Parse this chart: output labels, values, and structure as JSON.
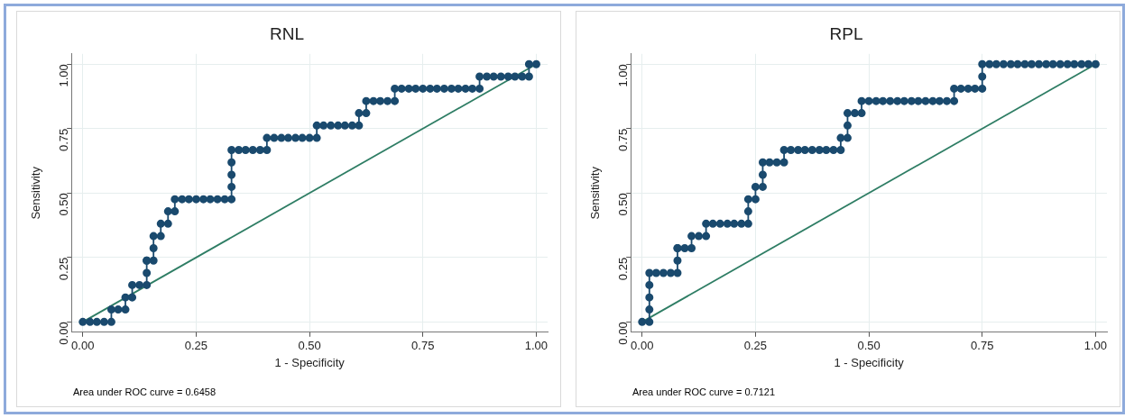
{
  "chart_data": [
    {
      "type": "line",
      "title": "RNL",
      "xlabel": "1 - Specificity",
      "ylabel": "Sensitivity",
      "annotations": [
        "Area under ROC curve = 0.6458"
      ],
      "xlim": [
        -0.025,
        1.025
      ],
      "ylim": [
        -0.04,
        1.04
      ],
      "xticks": [
        {
          "value": 0,
          "label": "0.00"
        },
        {
          "value": 0.25,
          "label": "0.25"
        },
        {
          "value": 0.5,
          "label": "0.50"
        },
        {
          "value": 0.75,
          "label": "0.75"
        },
        {
          "value": 1,
          "label": "1.00"
        }
      ],
      "yticks": [
        {
          "value": 0,
          "label": "0.00"
        },
        {
          "value": 0.25,
          "label": "0.25"
        },
        {
          "value": 0.5,
          "label": "0.50"
        },
        {
          "value": 0.75,
          "label": "0.75"
        },
        {
          "value": 1,
          "label": "1.00"
        }
      ],
      "grid": true,
      "legend": false,
      "series": [
        {
          "type": "scatter",
          "color": "#1a4a6e",
          "marker": "circle",
          "x": [
            0,
            0.016,
            0.031,
            0.047,
            0.063,
            0.063,
            0.078,
            0.094,
            0.094,
            0.109,
            0.109,
            0.125,
            0.141,
            0.141,
            0.141,
            0.141,
            0.156,
            0.156,
            0.156,
            0.172,
            0.172,
            0.188,
            0.188,
            0.203,
            0.203,
            0.219,
            0.234,
            0.25,
            0.266,
            0.281,
            0.297,
            0.313,
            0.328,
            0.328,
            0.328,
            0.328,
            0.328,
            0.344,
            0.359,
            0.375,
            0.391,
            0.406,
            0.406,
            0.422,
            0.438,
            0.453,
            0.469,
            0.484,
            0.5,
            0.516,
            0.516,
            0.531,
            0.547,
            0.563,
            0.578,
            0.594,
            0.609,
            0.609,
            0.625,
            0.625,
            0.641,
            0.656,
            0.672,
            0.688,
            0.688,
            0.703,
            0.719,
            0.734,
            0.75,
            0.766,
            0.781,
            0.797,
            0.813,
            0.828,
            0.844,
            0.859,
            0.875,
            0.875,
            0.891,
            0.906,
            0.922,
            0.938,
            0.953,
            0.969,
            0.984,
            0.984,
            1
          ],
          "values": [
            0,
            0,
            0,
            0,
            0,
            0.048,
            0.048,
            0.048,
            0.095,
            0.095,
            0.143,
            0.143,
            0.143,
            0.19,
            0.238,
            0.238,
            0.238,
            0.286,
            0.333,
            0.333,
            0.381,
            0.381,
            0.429,
            0.429,
            0.476,
            0.476,
            0.476,
            0.476,
            0.476,
            0.476,
            0.476,
            0.476,
            0.476,
            0.524,
            0.571,
            0.619,
            0.667,
            0.667,
            0.667,
            0.667,
            0.667,
            0.667,
            0.714,
            0.714,
            0.714,
            0.714,
            0.714,
            0.714,
            0.714,
            0.714,
            0.762,
            0.762,
            0.762,
            0.762,
            0.762,
            0.762,
            0.762,
            0.81,
            0.81,
            0.857,
            0.857,
            0.857,
            0.857,
            0.857,
            0.905,
            0.905,
            0.905,
            0.905,
            0.905,
            0.905,
            0.905,
            0.905,
            0.905,
            0.905,
            0.905,
            0.905,
            0.905,
            0.952,
            0.952,
            0.952,
            0.952,
            0.952,
            0.952,
            0.952,
            0.952,
            1,
            1
          ]
        },
        {
          "color": "#1a4a6e",
          "marker": "none",
          "x": [
            0,
            0.063,
            0.063,
            0.094,
            0.094,
            0.109,
            0.109,
            0.141,
            0.141,
            0.156,
            0.156,
            0.172,
            0.172,
            0.188,
            0.188,
            0.203,
            0.203,
            0.328,
            0.328,
            0.406,
            0.406,
            0.516,
            0.516,
            0.609,
            0.609,
            0.625,
            0.625,
            0.688,
            0.688,
            0.875,
            0.875,
            0.984,
            0.984,
            1
          ],
          "values": [
            0,
            0,
            0.048,
            0.048,
            0.095,
            0.095,
            0.143,
            0.143,
            0.238,
            0.238,
            0.333,
            0.333,
            0.381,
            0.381,
            0.429,
            0.429,
            0.476,
            0.476,
            0.667,
            0.667,
            0.714,
            0.714,
            0.762,
            0.762,
            0.81,
            0.81,
            0.857,
            0.857,
            0.905,
            0.905,
            0.952,
            0.952,
            1,
            1
          ]
        },
        {
          "color": "#2e7d64",
          "marker": "none",
          "x": [
            0,
            1
          ],
          "values": [
            0,
            1
          ]
        }
      ]
    },
    {
      "type": "line",
      "title": "RPL",
      "xlabel": "1 - Specificity",
      "ylabel": "Sensitivity",
      "annotations": [
        "Area under ROC curve = 0.7121"
      ],
      "xlim": [
        -0.025,
        1.025
      ],
      "ylim": [
        -0.04,
        1.04
      ],
      "xticks": [
        {
          "value": 0,
          "label": "0.00"
        },
        {
          "value": 0.25,
          "label": "0.25"
        },
        {
          "value": 0.5,
          "label": "0.50"
        },
        {
          "value": 0.75,
          "label": "0.75"
        },
        {
          "value": 1,
          "label": "1.00"
        }
      ],
      "yticks": [
        {
          "value": 0,
          "label": "0.00"
        },
        {
          "value": 0.25,
          "label": "0.25"
        },
        {
          "value": 0.5,
          "label": "0.50"
        },
        {
          "value": 0.75,
          "label": "0.75"
        },
        {
          "value": 1,
          "label": "1.00"
        }
      ],
      "grid": true,
      "legend": false,
      "series": [
        {
          "type": "scatter",
          "color": "#1a4a6e",
          "marker": "circle",
          "x": [
            0,
            0.016,
            0.016,
            0.016,
            0.016,
            0.016,
            0.031,
            0.047,
            0.063,
            0.078,
            0.078,
            0.078,
            0.078,
            0.094,
            0.109,
            0.109,
            0.125,
            0.141,
            0.141,
            0.156,
            0.172,
            0.188,
            0.203,
            0.219,
            0.234,
            0.234,
            0.234,
            0.25,
            0.25,
            0.266,
            0.266,
            0.266,
            0.281,
            0.297,
            0.313,
            0.313,
            0.328,
            0.344,
            0.359,
            0.375,
            0.391,
            0.406,
            0.422,
            0.438,
            0.438,
            0.453,
            0.453,
            0.453,
            0.469,
            0.484,
            0.484,
            0.5,
            0.516,
            0.531,
            0.547,
            0.563,
            0.578,
            0.594,
            0.609,
            0.625,
            0.641,
            0.656,
            0.672,
            0.688,
            0.688,
            0.703,
            0.719,
            0.734,
            0.75,
            0.75,
            0.75,
            0.766,
            0.781,
            0.797,
            0.813,
            0.828,
            0.844,
            0.859,
            0.875,
            0.891,
            0.906,
            0.922,
            0.938,
            0.953,
            0.969,
            0.984,
            1
          ],
          "values": [
            0,
            0,
            0.048,
            0.095,
            0.143,
            0.19,
            0.19,
            0.19,
            0.19,
            0.19,
            0.238,
            0.286,
            0.286,
            0.286,
            0.286,
            0.333,
            0.333,
            0.333,
            0.381,
            0.381,
            0.381,
            0.381,
            0.381,
            0.381,
            0.381,
            0.429,
            0.476,
            0.476,
            0.524,
            0.524,
            0.571,
            0.619,
            0.619,
            0.619,
            0.619,
            0.667,
            0.667,
            0.667,
            0.667,
            0.667,
            0.667,
            0.667,
            0.667,
            0.667,
            0.714,
            0.714,
            0.762,
            0.81,
            0.81,
            0.81,
            0.857,
            0.857,
            0.857,
            0.857,
            0.857,
            0.857,
            0.857,
            0.857,
            0.857,
            0.857,
            0.857,
            0.857,
            0.857,
            0.857,
            0.905,
            0.905,
            0.905,
            0.905,
            0.905,
            0.952,
            1,
            1,
            1,
            1,
            1,
            1,
            1,
            1,
            1,
            1,
            1,
            1,
            1,
            1,
            1,
            1,
            1
          ]
        },
        {
          "color": "#1a4a6e",
          "marker": "none",
          "x": [
            0,
            0.016,
            0.016,
            0.078,
            0.078,
            0.109,
            0.109,
            0.141,
            0.141,
            0.234,
            0.234,
            0.25,
            0.25,
            0.266,
            0.266,
            0.313,
            0.313,
            0.438,
            0.438,
            0.453,
            0.453,
            0.484,
            0.484,
            0.688,
            0.688,
            0.75,
            0.75,
            1
          ],
          "values": [
            0,
            0,
            0.19,
            0.19,
            0.286,
            0.286,
            0.333,
            0.333,
            0.381,
            0.381,
            0.476,
            0.476,
            0.524,
            0.524,
            0.619,
            0.619,
            0.667,
            0.667,
            0.714,
            0.714,
            0.81,
            0.81,
            0.857,
            0.857,
            0.905,
            0.905,
            1,
            1
          ]
        },
        {
          "color": "#2e7d64",
          "marker": "none",
          "x": [
            0,
            1
          ],
          "values": [
            0,
            1
          ]
        }
      ]
    }
  ]
}
